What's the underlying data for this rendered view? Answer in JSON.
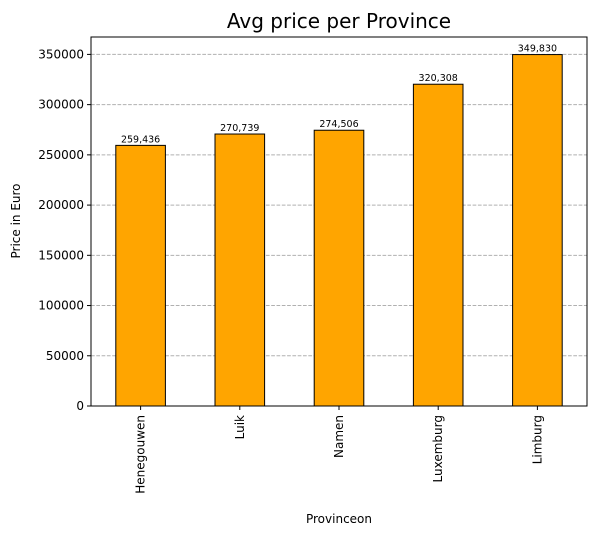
{
  "chart_data": {
    "type": "bar",
    "title": "Avg price per Province",
    "xlabel": "Provinceon",
    "ylabel": "Price in Euro",
    "categories": [
      "Henegouwen",
      "Luik",
      "Namen",
      "Luxemburg",
      "Limburg"
    ],
    "values": [
      259436,
      270739,
      274506,
      320308,
      349830
    ],
    "data_labels": [
      "259,436",
      "270,739",
      "274,506",
      "320,308",
      "349,830"
    ],
    "yticks": [
      0,
      50000,
      100000,
      150000,
      200000,
      250000,
      300000,
      350000
    ],
    "ytick_labels": [
      "0",
      "50000",
      "100000",
      "150000",
      "200000",
      "250000",
      "300000",
      "350000"
    ],
    "ylim": [
      0,
      367321
    ],
    "grid": "y-dashed",
    "colors": {
      "bar": "#ffa500",
      "edge": "#000000",
      "grid": "#b0b0b0"
    }
  }
}
